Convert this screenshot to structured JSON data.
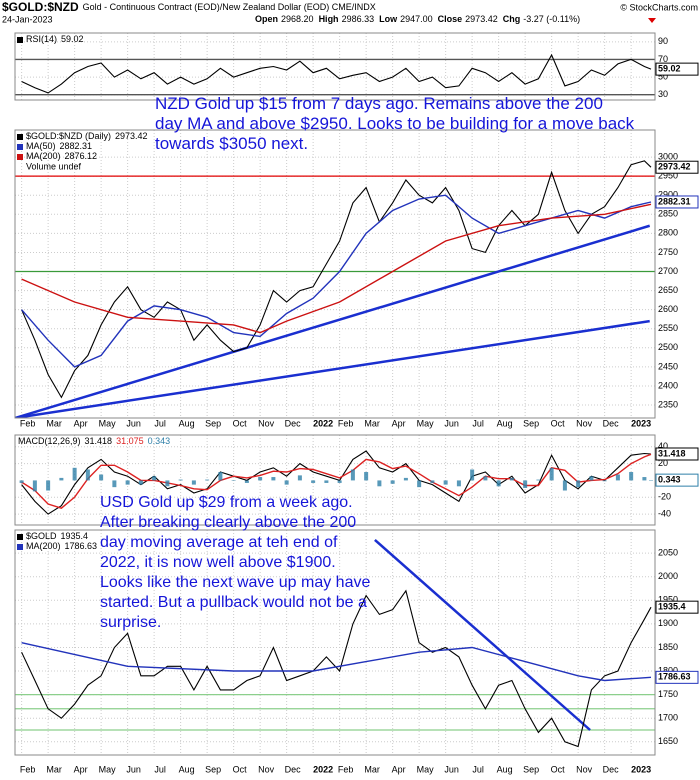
{
  "header": {
    "symbol": "$GOLD:$NZD",
    "description": "Gold - Continuous Contract (EOD)/New Zealand Dollar (EOD) CME/INDX",
    "source": "© StockCharts.com",
    "date": "24-Jan-2023",
    "quote": [
      {
        "label": "Open",
        "value": "2968.20"
      },
      {
        "label": "High",
        "value": "2986.33"
      },
      {
        "label": "Low",
        "value": "2947.00"
      },
      {
        "label": "Close",
        "value": "2973.42"
      },
      {
        "label": "Chg",
        "value": "-3.27 (-0.11%)"
      }
    ]
  },
  "xaxis": {
    "xlim": [
      -0.25,
      23.9
    ],
    "xticks": [
      {
        "value": 0,
        "label": "Feb"
      },
      {
        "value": 1,
        "label": "Mar"
      },
      {
        "value": 2,
        "label": "Apr"
      },
      {
        "value": 3,
        "label": "May"
      },
      {
        "value": 4,
        "label": "Jun"
      },
      {
        "value": 5,
        "label": "Jul"
      },
      {
        "value": 6,
        "label": "Aug"
      },
      {
        "value": 7,
        "label": "Sep"
      },
      {
        "value": 8,
        "label": "Oct"
      },
      {
        "value": 9,
        "label": "Nov"
      },
      {
        "value": 10,
        "label": "Dec"
      },
      11,
      {
        "value": 12,
        "label": "Feb"
      },
      {
        "value": 13,
        "label": "Mar"
      },
      {
        "value": 14,
        "label": "Apr"
      },
      {
        "value": 15,
        "label": "May"
      },
      {
        "value": 16,
        "label": "Jun"
      },
      {
        "value": 17,
        "label": "Jul"
      },
      {
        "value": 18,
        "label": "Aug"
      },
      {
        "value": 19,
        "label": "Sep"
      },
      {
        "value": 20,
        "label": "Oct"
      },
      {
        "value": 21,
        "label": "Nov"
      },
      {
        "value": 22,
        "label": "Dec"
      },
      23
    ],
    "xtick_labels": [
      {
        "value": 11,
        "label": "2022"
      },
      {
        "value": 23,
        "label": "2023"
      }
    ]
  },
  "chart_data": [
    {
      "type": "line",
      "grid": true,
      "ylim": [
        24,
        100
      ],
      "yticks": [
        90,
        70,
        50,
        30
      ],
      "x": [
        0,
        0.5,
        1,
        1.5,
        2,
        2.5,
        3,
        3.5,
        4,
        4.5,
        5,
        5.5,
        6,
        6.5,
        7,
        7.5,
        8,
        8.5,
        9,
        9.5,
        10,
        10.5,
        11,
        11.5,
        12,
        12.5,
        13,
        13.5,
        14,
        14.5,
        15,
        15.5,
        16,
        16.5,
        17,
        17.5,
        18,
        18.5,
        19,
        19.5,
        20,
        20.5,
        21,
        21.5,
        22,
        22.5,
        23,
        23.5,
        23.75
      ],
      "hlines": [
        {
          "value": 70,
          "color": "#555"
        },
        {
          "value": 30,
          "color": "#555"
        }
      ],
      "series": [
        {
          "name": "RSI(14)",
          "color": "#000",
          "tag": true,
          "values": [
            45,
            38,
            32,
            42,
            55,
            62,
            66,
            50,
            58,
            48,
            55,
            42,
            50,
            42,
            48,
            60,
            50,
            55,
            60,
            62,
            58,
            68,
            55,
            60,
            48,
            52,
            55,
            45,
            50,
            60,
            45,
            50,
            38,
            40,
            60,
            55,
            45,
            55,
            42,
            48,
            75,
            40,
            45,
            58,
            52,
            65,
            70,
            62,
            59.02
          ]
        }
      ]
    },
    {
      "type": "line",
      "grid": true,
      "ylim": [
        2316,
        3071
      ],
      "yticks": [
        2350,
        2400,
        2450,
        2500,
        2550,
        2600,
        2650,
        2700,
        2750,
        2800,
        2850,
        2900,
        2950,
        3000
      ],
      "x": [
        0,
        0.5,
        1,
        1.5,
        2,
        2.5,
        3,
        3.5,
        4,
        4.5,
        5,
        5.5,
        6,
        6.5,
        7,
        7.5,
        8,
        8.5,
        9,
        9.5,
        10,
        10.5,
        11,
        11.5,
        12,
        12.5,
        13,
        13.5,
        14,
        14.5,
        15,
        15.5,
        16,
        16.5,
        17,
        17.5,
        18,
        18.5,
        19,
        19.5,
        20,
        20.5,
        21,
        21.5,
        22,
        22.5,
        23,
        23.5,
        23.75
      ],
      "annotation": "NZD Gold up $15 from 7 days ago. Remains above the 200 day MA and above $2950. Looks to be building for a move back towards $3050 next.",
      "legend_note": "Volume undef",
      "hlines": [
        {
          "value": 2950,
          "color": "#e00000"
        },
        {
          "value": 2700,
          "color": "#3a9a3a"
        }
      ],
      "lines": [
        {
          "points": [
            [
              -0.25,
              2316
            ],
            [
              23.7,
              2820
            ]
          ],
          "color": "#1a2fd0"
        },
        {
          "points": [
            [
              -0.25,
              2316
            ],
            [
              23.7,
              2570
            ]
          ],
          "color": "#1a2fd0"
        }
      ],
      "series": [
        {
          "name": "$GOLD:$NZD (Daily)",
          "color": "#000",
          "tag": true,
          "values": [
            2600,
            2520,
            2430,
            2370,
            2440,
            2480,
            2560,
            2620,
            2660,
            2600,
            2580,
            2620,
            2600,
            2520,
            2560,
            2520,
            2490,
            2500,
            2560,
            2650,
            2620,
            2650,
            2660,
            2720,
            2780,
            2880,
            2920,
            2830,
            2880,
            2940,
            2900,
            2880,
            2920,
            2860,
            2760,
            2750,
            2820,
            2860,
            2820,
            2850,
            2960,
            2860,
            2800,
            2850,
            2870,
            2920,
            2980,
            2990,
            2973.42
          ]
        },
        {
          "name": "MA(50)",
          "color": "#2233bb",
          "tag": true,
          "x": [
            0,
            1,
            2,
            3,
            4,
            5,
            6,
            7,
            8,
            9,
            10,
            11,
            12,
            13,
            14,
            15,
            16,
            17,
            18,
            19,
            20,
            21,
            22,
            23,
            23.75
          ],
          "values": [
            2600,
            2520,
            2450,
            2480,
            2570,
            2610,
            2600,
            2580,
            2540,
            2530,
            2590,
            2630,
            2700,
            2800,
            2860,
            2890,
            2900,
            2840,
            2800,
            2820,
            2840,
            2860,
            2840,
            2870,
            2882.31
          ]
        },
        {
          "name": "MA(200)",
          "color": "#cc1111",
          "x": [
            0,
            2,
            4,
            6,
            8,
            9,
            10,
            12,
            14,
            16,
            18,
            20,
            22,
            23.75
          ],
          "values": [
            2680,
            2620,
            2580,
            2570,
            2560,
            2540,
            2570,
            2620,
            2700,
            2780,
            2820,
            2840,
            2850,
            2876.12
          ]
        }
      ]
    },
    {
      "type": "line",
      "grid": true,
      "ylim": [
        -53,
        54
      ],
      "yticks": [
        40,
        20,
        -20,
        -40
      ],
      "legend_title": "MACD(12,26,9)",
      "x": [
        0,
        0.5,
        1,
        1.5,
        2,
        2.5,
        3,
        3.5,
        4,
        4.5,
        5,
        5.5,
        6,
        6.5,
        7,
        7.5,
        8,
        8.5,
        9,
        9.5,
        10,
        10.5,
        11,
        11.5,
        12,
        12.5,
        13,
        13.5,
        14,
        14.5,
        15,
        15.5,
        16,
        16.5,
        17,
        17.5,
        18,
        18.5,
        19,
        19.5,
        20,
        20.5,
        21,
        21.5,
        22,
        22.5,
        23,
        23.5,
        23.75
      ],
      "series": [
        {
          "color": "#000",
          "tag": true,
          "values": [
            -5,
            -25,
            -40,
            -30,
            -5,
            15,
            25,
            10,
            5,
            -5,
            5,
            -10,
            -5,
            -15,
            -10,
            10,
            5,
            0,
            10,
            15,
            5,
            20,
            10,
            5,
            0,
            25,
            35,
            15,
            10,
            20,
            0,
            -5,
            -15,
            -25,
            5,
            10,
            -5,
            5,
            -15,
            -5,
            30,
            0,
            -10,
            5,
            0,
            15,
            30,
            32,
            31.418
          ]
        },
        {
          "color": "#dd2222",
          "values": [
            -2,
            -12,
            -28,
            -33,
            -20,
            2,
            18,
            18,
            10,
            0,
            0,
            -3,
            -6,
            -10,
            -11,
            0,
            5,
            3,
            6,
            11,
            10,
            14,
            13,
            8,
            3,
            12,
            25,
            22,
            14,
            17,
            8,
            -2,
            -10,
            -18,
            -8,
            5,
            2,
            2,
            -6,
            -6,
            15,
            12,
            -2,
            0,
            1,
            8,
            20,
            28,
            31.075
          ]
        },
        {
          "color": "#2e7fa8",
          "style": "bar",
          "tag": true,
          "values": [
            -3,
            -13,
            -12,
            3,
            15,
            13,
            7,
            -8,
            -5,
            -5,
            5,
            -7,
            1,
            -5,
            1,
            10,
            0,
            -3,
            4,
            4,
            -5,
            6,
            -3,
            -3,
            -3,
            13,
            10,
            -7,
            -4,
            3,
            -8,
            -3,
            -5,
            -7,
            13,
            5,
            -7,
            3,
            -9,
            1,
            15,
            -12,
            -8,
            5,
            -1,
            7,
            10,
            4,
            0.343
          ]
        }
      ]
    },
    {
      "type": "line",
      "grid": true,
      "ylim": [
        1622,
        2099
      ],
      "yticks": [
        1650,
        1700,
        1750,
        1800,
        1850,
        1900,
        1950,
        2000,
        2050
      ],
      "x": [
        0,
        0.5,
        1,
        1.5,
        2,
        2.5,
        3,
        3.5,
        4,
        4.5,
        5,
        5.5,
        6,
        6.5,
        7,
        7.5,
        8,
        8.5,
        9,
        9.5,
        10,
        10.5,
        11,
        11.5,
        12,
        12.5,
        13,
        13.5,
        14,
        14.5,
        15,
        15.5,
        16,
        16.5,
        17,
        17.5,
        18,
        18.5,
        19,
        19.5,
        20,
        20.5,
        21,
        21.5,
        22,
        22.5,
        23,
        23.5,
        23.75
      ],
      "annotation": "USD Gold up $29 from a week ago. After breaking clearly above the 200 day moving average at teh end of 2022, it is now well above $1900. Looks like the next wave up may have started. But a pullback would not be a surprise.",
      "hlines": [
        {
          "value": 1750,
          "color": "#8ccf8c"
        },
        {
          "value": 1720,
          "color": "#8ccf8c"
        },
        {
          "value": 1675,
          "color": "#8ccf8c"
        }
      ],
      "lines": [
        {
          "points": [
            [
              13.33,
              2078
            ],
            [
              21.45,
              1675
            ]
          ],
          "color": "#1a2fd0"
        }
      ],
      "series": [
        {
          "name": "$GOLD",
          "color": "#000",
          "tag": true,
          "values": [
            1840,
            1780,
            1720,
            1700,
            1730,
            1770,
            1790,
            1850,
            1880,
            1790,
            1790,
            1810,
            1810,
            1760,
            1810,
            1760,
            1760,
            1780,
            1790,
            1850,
            1780,
            1790,
            1800,
            1830,
            1800,
            1900,
            1960,
            1920,
            1930,
            1970,
            1860,
            1840,
            1850,
            1830,
            1770,
            1720,
            1770,
            1780,
            1720,
            1670,
            1700,
            1650,
            1640,
            1760,
            1790,
            1800,
            1860,
            1910,
            1935.4
          ]
        },
        {
          "name": "MA(200)",
          "color": "#2233bb",
          "tag": true,
          "x": [
            0,
            4,
            8,
            11,
            13,
            15,
            17,
            19,
            21,
            22,
            23.75
          ],
          "values": [
            1860,
            1810,
            1800,
            1800,
            1820,
            1840,
            1850,
            1820,
            1790,
            1780,
            1786.63
          ]
        }
      ]
    }
  ]
}
